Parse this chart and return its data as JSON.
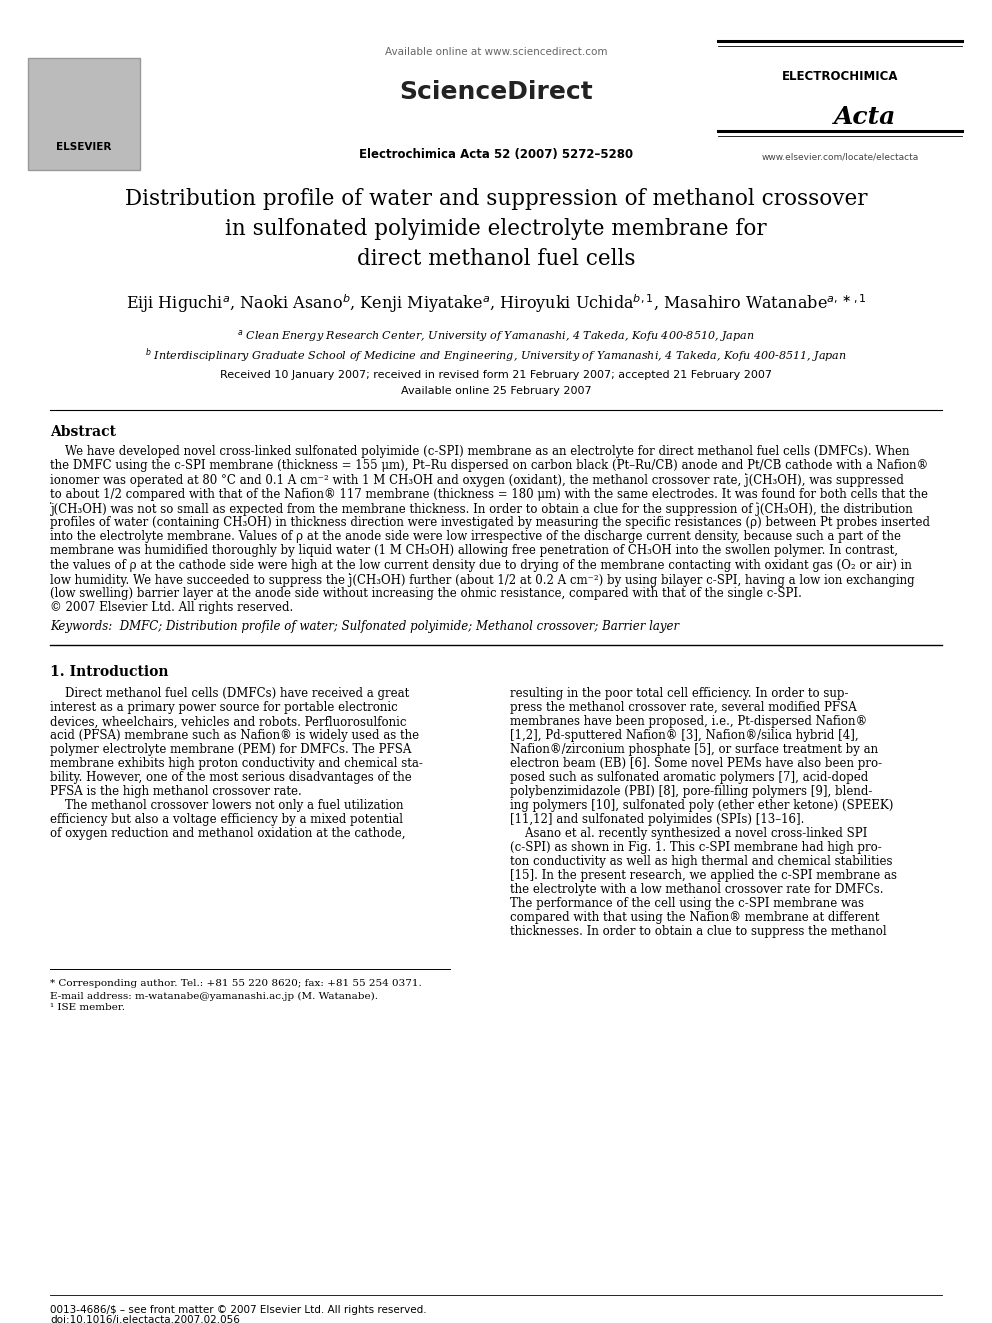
{
  "bg_color": "#ffffff",
  "header": {
    "available_online": "Available online at www.sciencedirect.com",
    "sciencedirect": "ScienceDirect",
    "journal_ref": "Electrochimica Acta 52 (2007) 5272–5280",
    "journal_name": "ELECTROCHIMICA",
    "journal_italic": "Acta",
    "journal_url": "www.elsevier.com/locate/electacta",
    "elsevier": "ELSEVIER"
  },
  "title_line1": "Distribution profile of water and suppression of methanol crossover",
  "title_line2": "in sulfonated polyimide electrolyte membrane for",
  "title_line3": "direct methanol fuel cells",
  "received": "Received 10 January 2007; received in revised form 21 February 2007; accepted 21 February 2007",
  "available": "Available online 25 February 2007",
  "abstract_title": "Abstract",
  "keywords": "Keywords:  DMFC; Distribution profile of water; Sulfonated polyimide; Methanol crossover; Barrier layer",
  "section1_title": "1. Introduction",
  "footnote_star": "* Corresponding author. Tel.: +81 55 220 8620; fax: +81 55 254 0371.",
  "footnote_email": "E-mail address: m-watanabe@yamanashi.ac.jp (M. Watanabe).",
  "footnote_1": "¹ ISE member.",
  "footer_left": "0013-4686/$ – see front matter © 2007 Elsevier Ltd. All rights reserved.",
  "footer_doi": "doi:10.1016/j.electacta.2007.02.056",
  "abs_lines": [
    "    We have developed novel cross-linked sulfonated polyimide (c-SPI) membrane as an electrolyte for direct methanol fuel cells (DMFCs). When",
    "the DMFC using the c-SPI membrane (thickness = 155 μm), Pt–Ru dispersed on carbon black (Pt–Ru/CB) anode and Pt/CB cathode with a Nafion®",
    "ionomer was operated at 80 °C and 0.1 A cm⁻² with 1 M CH₃OH and oxygen (oxidant), the methanol crossover rate, j̇(CH₃OH), was suppressed",
    "to about 1/2 compared with that of the Nafion® 117 membrane (thickness = 180 μm) with the same electrodes. It was found for both cells that the",
    "j̇(CH₃OH) was not so small as expected from the membrane thickness. In order to obtain a clue for the suppression of j̇(CH₃OH), the distribution",
    "profiles of water (containing CH₃OH) in thickness direction were investigated by measuring the specific resistances (ρ) between Pt probes inserted",
    "into the electrolyte membrane. Values of ρ at the anode side were low irrespective of the discharge current density, because such a part of the",
    "membrane was humidified thoroughly by liquid water (1 M CH₃OH) allowing free penetration of CH₃OH into the swollen polymer. In contrast,",
    "the values of ρ at the cathode side were high at the low current density due to drying of the membrane contacting with oxidant gas (O₂ or air) in",
    "low humidity. We have succeeded to suppress the j̇(CH₃OH) further (about 1/2 at 0.2 A cm⁻²) by using bilayer c-SPI, having a low ion exchanging",
    "(low swelling) barrier layer at the anode side without increasing the ohmic resistance, compared with that of the single c-SPI.",
    "© 2007 Elsevier Ltd. All rights reserved."
  ],
  "col1_lines": [
    "    Direct methanol fuel cells (DMFCs) have received a great",
    "interest as a primary power source for portable electronic",
    "devices, wheelchairs, vehicles and robots. Perfluorosulfonic",
    "acid (PFSA) membrane such as Nafion® is widely used as the",
    "polymer electrolyte membrane (PEM) for DMFCs. The PFSA",
    "membrane exhibits high proton conductivity and chemical sta-",
    "bility. However, one of the most serious disadvantages of the",
    "PFSA is the high methanol crossover rate.",
    "    The methanol crossover lowers not only a fuel utilization",
    "efficiency but also a voltage efficiency by a mixed potential",
    "of oxygen reduction and methanol oxidation at the cathode,"
  ],
  "col2_lines": [
    "resulting in the poor total cell efficiency. In order to sup-",
    "press the methanol crossover rate, several modified PFSA",
    "membranes have been proposed, i.e., Pt-dispersed Nafion®",
    "[1,2], Pd-sputtered Nafion® [3], Nafion®/silica hybrid [4],",
    "Nafion®/zirconium phosphate [5], or surface treatment by an",
    "electron beam (EB) [6]. Some novel PEMs have also been pro-",
    "posed such as sulfonated aromatic polymers [7], acid-doped",
    "polybenzimidazole (PBI) [8], pore-filling polymers [9], blend-",
    "ing polymers [10], sulfonated poly (ether ether ketone) (SPEEK)",
    "[11,12] and sulfonated polyimides (SPIs) [13–16].",
    "    Asano et al. recently synthesized a novel cross-linked SPI",
    "(c-SPI) as shown in Fig. 1. This c-SPI membrane had high pro-",
    "ton conductivity as well as high thermal and chemical stabilities",
    "[15]. In the present research, we applied the c-SPI membrane as",
    "the electrolyte with a low methanol crossover rate for DMFCs.",
    "The performance of the cell using the c-SPI membrane was",
    "compared with that using the Nafion® membrane at different",
    "thicknesses. In order to obtain a clue to suppress the methanol"
  ]
}
